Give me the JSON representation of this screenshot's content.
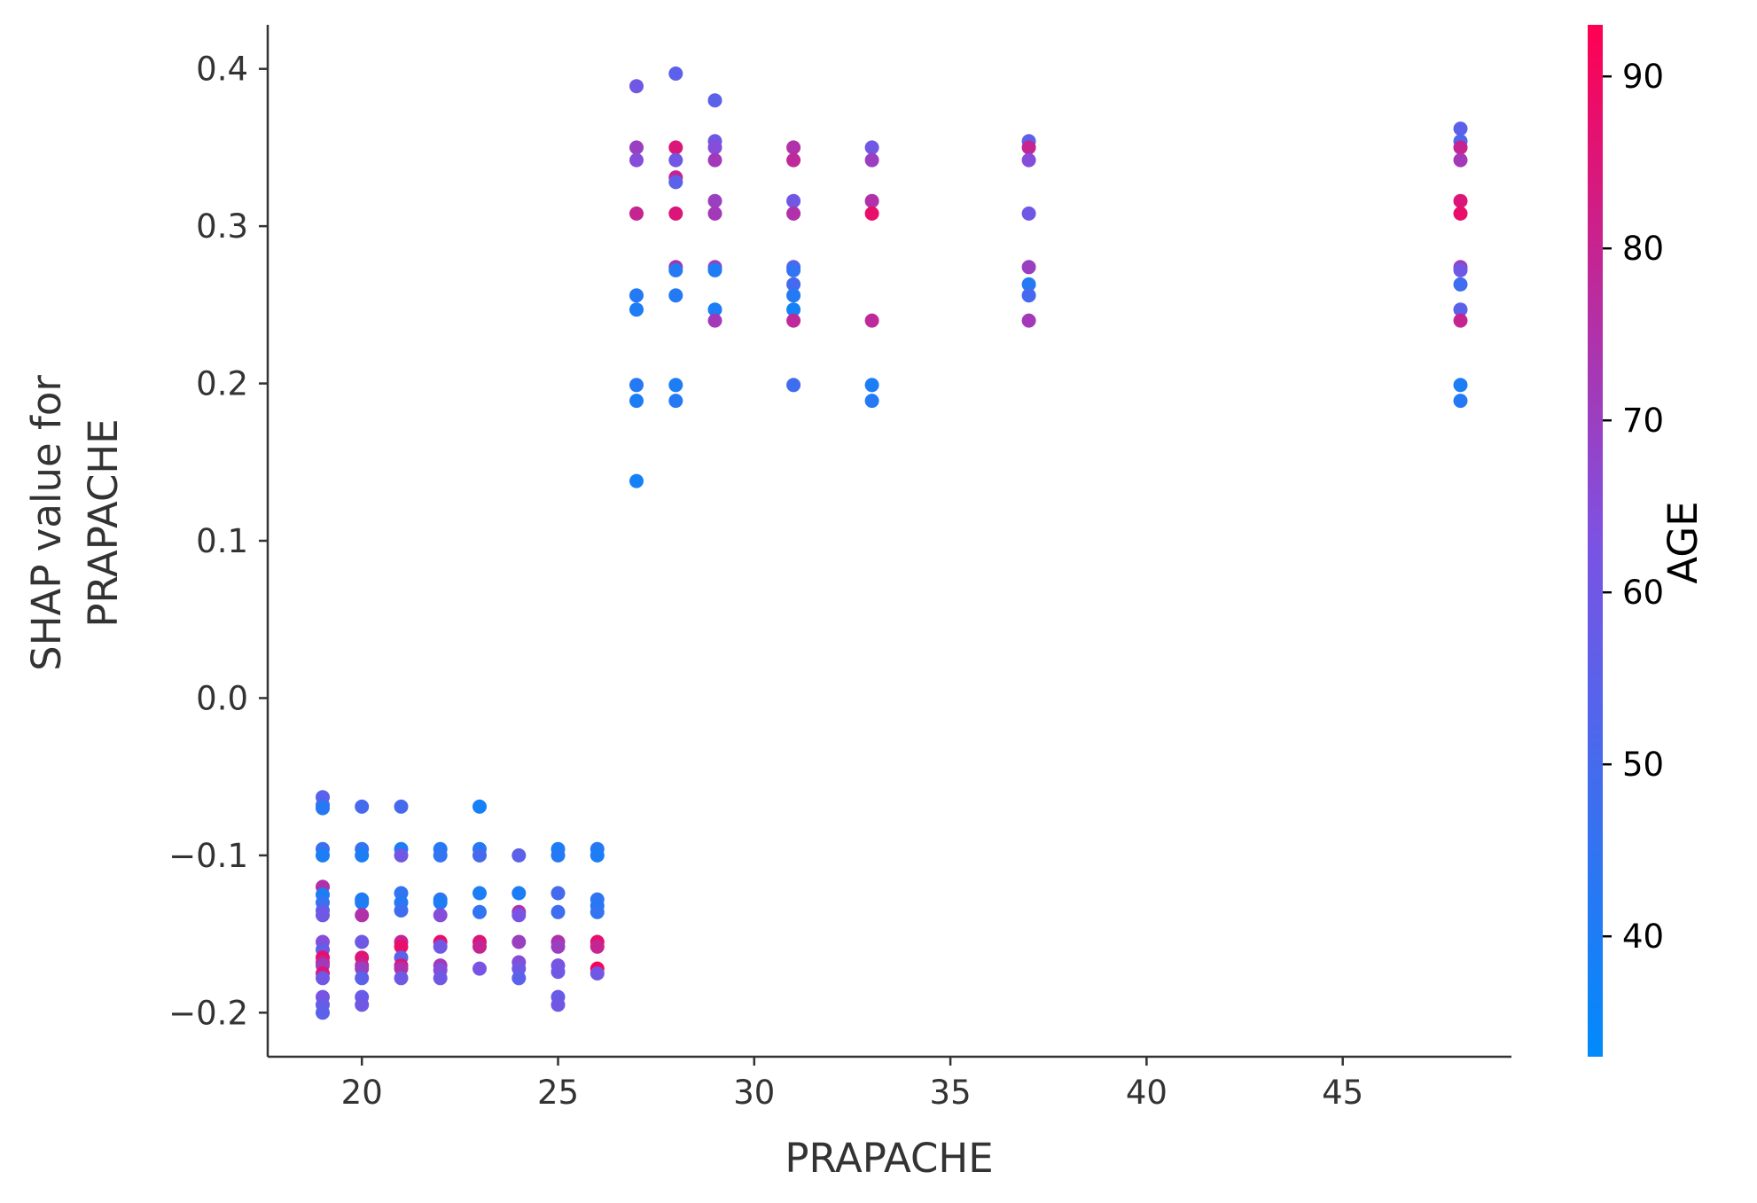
{
  "chart_data": {
    "type": "scatter",
    "title": "",
    "xlabel": "PRAPACHE",
    "ylabel_lines": [
      "SHAP value for",
      "PRAPACHE"
    ],
    "xlim": [
      17.6,
      49.3
    ],
    "ylim": [
      -0.228,
      0.428
    ],
    "xticks": [
      20,
      25,
      30,
      35,
      40,
      45
    ],
    "yticks": [
      -0.2,
      -0.1,
      0.0,
      0.1,
      0.2,
      0.3,
      0.4
    ],
    "ytick_labels": [
      "−0.2",
      "−0.1",
      "0.0",
      "0.1",
      "0.2",
      "0.3",
      "0.4"
    ],
    "grid": false,
    "colorbar": {
      "label": "AGE",
      "range": [
        33,
        93
      ],
      "ticks": [
        40,
        50,
        60,
        70,
        80,
        90
      ],
      "colors": [
        "#008afb",
        "#7c52e3",
        "#ff0052"
      ]
    },
    "points": [
      [
        19,
        -0.063,
        55
      ],
      [
        19,
        -0.068,
        50
      ],
      [
        19,
        -0.07,
        42
      ],
      [
        19,
        -0.096,
        47
      ],
      [
        19,
        -0.1,
        40
      ],
      [
        19,
        -0.12,
        75
      ],
      [
        19,
        -0.125,
        40
      ],
      [
        19,
        -0.13,
        45
      ],
      [
        19,
        -0.135,
        55
      ],
      [
        19,
        -0.138,
        60
      ],
      [
        19,
        -0.155,
        65
      ],
      [
        19,
        -0.16,
        58
      ],
      [
        19,
        -0.165,
        88
      ],
      [
        19,
        -0.168,
        80
      ],
      [
        19,
        -0.17,
        72
      ],
      [
        19,
        -0.175,
        85
      ],
      [
        19,
        -0.178,
        60
      ],
      [
        19,
        -0.19,
        62
      ],
      [
        19,
        -0.195,
        58
      ],
      [
        19,
        -0.2,
        55
      ],
      [
        20,
        -0.069,
        50
      ],
      [
        20,
        -0.096,
        45
      ],
      [
        20,
        -0.1,
        40
      ],
      [
        20,
        -0.128,
        42
      ],
      [
        20,
        -0.13,
        40
      ],
      [
        20,
        -0.138,
        75
      ],
      [
        20,
        -0.155,
        60
      ],
      [
        20,
        -0.165,
        85
      ],
      [
        20,
        -0.17,
        80
      ],
      [
        20,
        -0.172,
        70
      ],
      [
        20,
        -0.178,
        55
      ],
      [
        20,
        -0.19,
        58
      ],
      [
        20,
        -0.195,
        60
      ],
      [
        21,
        -0.069,
        50
      ],
      [
        21,
        -0.096,
        40
      ],
      [
        21,
        -0.1,
        60
      ],
      [
        21,
        -0.124,
        45
      ],
      [
        21,
        -0.13,
        42
      ],
      [
        21,
        -0.135,
        48
      ],
      [
        21,
        -0.155,
        80
      ],
      [
        21,
        -0.158,
        88
      ],
      [
        21,
        -0.165,
        55
      ],
      [
        21,
        -0.17,
        85
      ],
      [
        21,
        -0.172,
        75
      ],
      [
        21,
        -0.178,
        60
      ],
      [
        22,
        -0.096,
        42
      ],
      [
        22,
        -0.1,
        45
      ],
      [
        22,
        -0.128,
        45
      ],
      [
        22,
        -0.13,
        40
      ],
      [
        22,
        -0.138,
        65
      ],
      [
        22,
        -0.155,
        88
      ],
      [
        22,
        -0.158,
        60
      ],
      [
        22,
        -0.17,
        72
      ],
      [
        22,
        -0.173,
        65
      ],
      [
        22,
        -0.178,
        60
      ],
      [
        23,
        -0.069,
        38
      ],
      [
        23,
        -0.096,
        42
      ],
      [
        23,
        -0.1,
        50
      ],
      [
        23,
        -0.124,
        40
      ],
      [
        23,
        -0.136,
        45
      ],
      [
        23,
        -0.155,
        85
      ],
      [
        23,
        -0.158,
        80
      ],
      [
        23,
        -0.172,
        62
      ],
      [
        24,
        -0.1,
        55
      ],
      [
        24,
        -0.124,
        40
      ],
      [
        24,
        -0.136,
        75
      ],
      [
        24,
        -0.138,
        62
      ],
      [
        24,
        -0.155,
        70
      ],
      [
        24,
        -0.168,
        65
      ],
      [
        24,
        -0.172,
        60
      ],
      [
        24,
        -0.178,
        55
      ],
      [
        25,
        -0.096,
        40
      ],
      [
        25,
        -0.1,
        42
      ],
      [
        25,
        -0.124,
        50
      ],
      [
        25,
        -0.136,
        48
      ],
      [
        25,
        -0.155,
        75
      ],
      [
        25,
        -0.158,
        70
      ],
      [
        25,
        -0.17,
        62
      ],
      [
        25,
        -0.174,
        60
      ],
      [
        25,
        -0.19,
        58
      ],
      [
        25,
        -0.195,
        60
      ],
      [
        26,
        -0.096,
        42
      ],
      [
        26,
        -0.1,
        40
      ],
      [
        26,
        -0.128,
        45
      ],
      [
        26,
        -0.132,
        42
      ],
      [
        26,
        -0.136,
        45
      ],
      [
        26,
        -0.155,
        88
      ],
      [
        26,
        -0.158,
        80
      ],
      [
        26,
        -0.172,
        92
      ],
      [
        26,
        -0.175,
        60
      ],
      [
        27,
        0.389,
        60
      ],
      [
        27,
        0.35,
        70
      ],
      [
        27,
        0.342,
        65
      ],
      [
        27,
        0.308,
        80
      ],
      [
        27,
        0.256,
        42
      ],
      [
        27,
        0.247,
        40
      ],
      [
        27,
        0.199,
        42
      ],
      [
        27,
        0.189,
        40
      ],
      [
        27,
        0.138,
        38
      ],
      [
        28,
        0.397,
        55
      ],
      [
        28,
        0.35,
        85
      ],
      [
        28,
        0.342,
        60
      ],
      [
        28,
        0.331,
        80
      ],
      [
        28,
        0.328,
        55
      ],
      [
        28,
        0.308,
        85
      ],
      [
        28,
        0.274,
        75
      ],
      [
        28,
        0.272,
        42
      ],
      [
        28,
        0.256,
        42
      ],
      [
        28,
        0.199,
        40
      ],
      [
        28,
        0.189,
        42
      ],
      [
        29,
        0.38,
        55
      ],
      [
        29,
        0.354,
        60
      ],
      [
        29,
        0.35,
        65
      ],
      [
        29,
        0.342,
        72
      ],
      [
        29,
        0.316,
        70
      ],
      [
        29,
        0.308,
        72
      ],
      [
        29,
        0.274,
        70
      ],
      [
        29,
        0.272,
        40
      ],
      [
        29,
        0.247,
        40
      ],
      [
        29,
        0.24,
        72
      ],
      [
        31,
        0.35,
        75
      ],
      [
        31,
        0.342,
        78
      ],
      [
        31,
        0.316,
        60
      ],
      [
        31,
        0.308,
        75
      ],
      [
        31,
        0.274,
        55
      ],
      [
        31,
        0.272,
        45
      ],
      [
        31,
        0.263,
        50
      ],
      [
        31,
        0.256,
        42
      ],
      [
        31,
        0.247,
        38
      ],
      [
        31,
        0.24,
        78
      ],
      [
        31,
        0.199,
        48
      ],
      [
        33,
        0.35,
        60
      ],
      [
        33,
        0.342,
        70
      ],
      [
        33,
        0.316,
        75
      ],
      [
        33,
        0.308,
        88
      ],
      [
        33,
        0.24,
        78
      ],
      [
        33,
        0.199,
        40
      ],
      [
        33,
        0.189,
        42
      ],
      [
        37,
        0.354,
        55
      ],
      [
        37,
        0.35,
        80
      ],
      [
        37,
        0.342,
        65
      ],
      [
        37,
        0.308,
        60
      ],
      [
        37,
        0.274,
        70
      ],
      [
        37,
        0.263,
        42
      ],
      [
        37,
        0.256,
        50
      ],
      [
        37,
        0.24,
        72
      ],
      [
        48,
        0.362,
        55
      ],
      [
        48,
        0.354,
        52
      ],
      [
        48,
        0.35,
        80
      ],
      [
        48,
        0.342,
        72
      ],
      [
        48,
        0.316,
        85
      ],
      [
        48,
        0.308,
        88
      ],
      [
        48,
        0.274,
        70
      ],
      [
        48,
        0.272,
        60
      ],
      [
        48,
        0.263,
        48
      ],
      [
        48,
        0.247,
        55
      ],
      [
        48,
        0.24,
        80
      ],
      [
        48,
        0.199,
        40
      ],
      [
        48,
        0.189,
        42
      ]
    ]
  }
}
